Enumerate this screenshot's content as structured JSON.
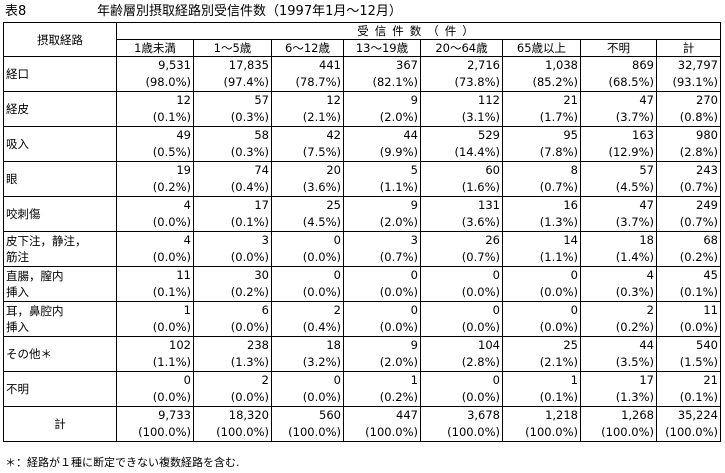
{
  "caption": {
    "label": "表8",
    "title": "年齢層別摂取経路別受信件数（1997年1月～12月）"
  },
  "header": {
    "corner": "摂取経路",
    "group": "受信件数（件）",
    "columns": [
      "1歳未満",
      "1～5歳",
      "6～12歳",
      "13～19歳",
      "20～64歳",
      "65歳以上",
      "不明",
      "計"
    ]
  },
  "rows": [
    {
      "label": [
        "経口"
      ],
      "counts": [
        "9,531",
        "17,835",
        "441",
        "367",
        "2,716",
        "1,038",
        "869",
        "32,797"
      ],
      "pcts": [
        "(98.0%)",
        "(97.4%)",
        "(78.7%)",
        "(82.1%)",
        "(73.8%)",
        "(85.2%)",
        "(68.5%)",
        "(93.1%)"
      ]
    },
    {
      "label": [
        "経皮"
      ],
      "counts": [
        "12",
        "57",
        "12",
        "9",
        "112",
        "21",
        "47",
        "270"
      ],
      "pcts": [
        "(0.1%)",
        "(0.3%)",
        "(2.1%)",
        "(2.0%)",
        "(3.1%)",
        "(1.7%)",
        "(3.7%)",
        "(0.8%)"
      ]
    },
    {
      "label": [
        "吸入"
      ],
      "counts": [
        "49",
        "58",
        "42",
        "44",
        "529",
        "95",
        "163",
        "980"
      ],
      "pcts": [
        "(0.5%)",
        "(0.3%)",
        "(7.5%)",
        "(9.9%)",
        "(14.4%)",
        "(7.8%)",
        "(12.9%)",
        "(2.8%)"
      ]
    },
    {
      "label": [
        "眼"
      ],
      "counts": [
        "19",
        "74",
        "20",
        "5",
        "60",
        "8",
        "57",
        "243"
      ],
      "pcts": [
        "(0.2%)",
        "(0.4%)",
        "(3.6%)",
        "(1.1%)",
        "(1.6%)",
        "(0.7%)",
        "(4.5%)",
        "(0.7%)"
      ]
    },
    {
      "label": [
        "咬刺傷"
      ],
      "counts": [
        "4",
        "17",
        "25",
        "9",
        "131",
        "16",
        "47",
        "249"
      ],
      "pcts": [
        "(0.0%)",
        "(0.1%)",
        "(4.5%)",
        "(2.0%)",
        "(3.6%)",
        "(1.3%)",
        "(3.7%)",
        "(0.7%)"
      ]
    },
    {
      "label": [
        "皮下注，静注，",
        "筋注"
      ],
      "counts": [
        "4",
        "3",
        "0",
        "3",
        "26",
        "14",
        "18",
        "68"
      ],
      "pcts": [
        "(0.0%)",
        "(0.0%)",
        "(0.0%)",
        "(0.7%)",
        "(0.7%)",
        "(1.1%)",
        "(1.4%)",
        "(0.2%)"
      ]
    },
    {
      "label": [
        "直腸，膣内",
        "挿入"
      ],
      "counts": [
        "11",
        "30",
        "0",
        "0",
        "0",
        "0",
        "4",
        "45"
      ],
      "pcts": [
        "(0.1%)",
        "(0.2%)",
        "(0.0%)",
        "(0.0%)",
        "(0.0%)",
        "(0.0%)",
        "(0.3%)",
        "(0.1%)"
      ]
    },
    {
      "label": [
        "耳，鼻腔内",
        "挿入"
      ],
      "counts": [
        "1",
        "6",
        "2",
        "0",
        "0",
        "0",
        "2",
        "11"
      ],
      "pcts": [
        "(0.0%)",
        "(0.0%)",
        "(0.4%)",
        "(0.0%)",
        "(0.0%)",
        "(0.0%)",
        "(0.2%)",
        "(0.0%)"
      ]
    },
    {
      "label": [
        "その他＊"
      ],
      "counts": [
        "102",
        "238",
        "18",
        "9",
        "104",
        "25",
        "44",
        "540"
      ],
      "pcts": [
        "(1.1%)",
        "(1.3%)",
        "(3.2%)",
        "(2.0%)",
        "(2.8%)",
        "(2.1%)",
        "(3.5%)",
        "(1.5%)"
      ]
    },
    {
      "label": [
        "不明"
      ],
      "counts": [
        "0",
        "2",
        "0",
        "1",
        "0",
        "1",
        "17",
        "21"
      ],
      "pcts": [
        "(0.0%)",
        "(0.0%)",
        "(0.0%)",
        "(0.2%)",
        "(0.0%)",
        "(0.1%)",
        "(1.3%)",
        "(0.1%)"
      ]
    }
  ],
  "total": {
    "label": "計",
    "counts": [
      "9,733",
      "18,320",
      "560",
      "447",
      "3,678",
      "1,218",
      "1,268",
      "35,224"
    ],
    "pcts": [
      "(100.0%)",
      "(100.0%)",
      "(100.0%)",
      "(100.0%)",
      "(100.0%)",
      "(100.0%)",
      "(100.0%)",
      "(100.0%)"
    ]
  },
  "note": "＊：経路が１種に断定できない複数経路を含む."
}
